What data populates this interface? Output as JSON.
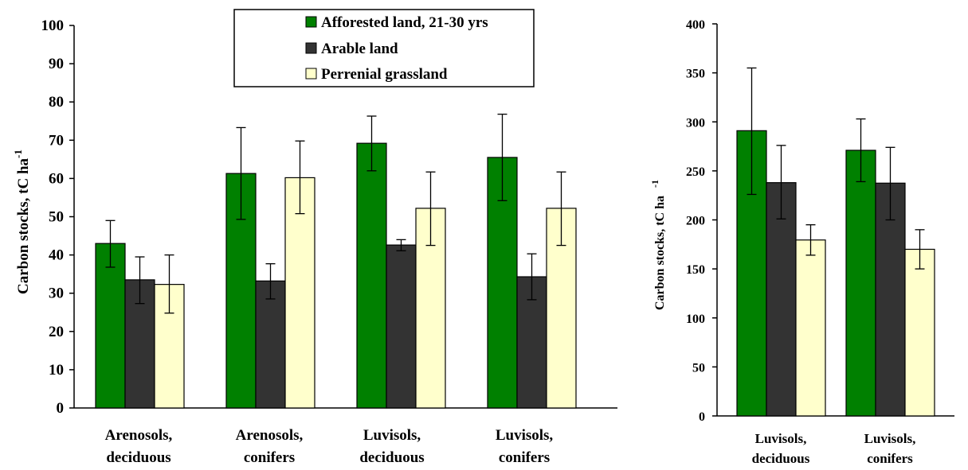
{
  "colors": {
    "afforested": "#008000",
    "arable": "#333333",
    "grassland": "#ffffcc",
    "stroke": "#000000"
  },
  "chart_data": [
    {
      "type": "bar",
      "categories": [
        [
          "Arenosols,",
          "deciduous"
        ],
        [
          "Arenosols,",
          "conifers"
        ],
        [
          "Luvisols,",
          "deciduous"
        ],
        [
          "Luvisols,",
          "conifers"
        ]
      ],
      "ylabel": "Carbon stocks, tC ha",
      "ylabel_sup": "-1",
      "ylim": [
        0,
        100
      ],
      "yticks": [
        0,
        10,
        20,
        30,
        40,
        50,
        60,
        70,
        80,
        90,
        100
      ],
      "grid": false,
      "legend_position": "top-center",
      "series": [
        {
          "name": "Afforested land, 21-30 yrs",
          "values": [
            43,
            61.3,
            69.2,
            65.5
          ],
          "err_low": [
            36.8,
            49.3,
            62,
            54.2
          ],
          "err_high": [
            49,
            73.3,
            76.3,
            76.8
          ]
        },
        {
          "name": "Arable land",
          "values": [
            33.5,
            33.2,
            42.6,
            34.3
          ],
          "err_low": [
            27.3,
            28.5,
            41.1,
            28.3
          ],
          "err_high": [
            39.5,
            37.7,
            44,
            40.3
          ]
        },
        {
          "name": "Perrenial grassland",
          "values": [
            32.3,
            60.2,
            52.2,
            52.2
          ],
          "err_low": [
            24.8,
            50.8,
            42.5,
            42.5
          ],
          "err_high": [
            40,
            69.8,
            61.7,
            61.7
          ]
        }
      ]
    },
    {
      "type": "bar",
      "categories": [
        [
          "Luvisols,",
          "deciduous"
        ],
        [
          "Luvisols,",
          "conifers"
        ]
      ],
      "ylabel": "Carbon stocks, tC ha",
      "ylabel_sup": "-1",
      "ylim": [
        0,
        400
      ],
      "yticks": [
        0,
        50,
        100,
        150,
        200,
        250,
        300,
        350,
        400
      ],
      "grid": false,
      "series": [
        {
          "name": "Afforested land, 21-30 yrs",
          "values": [
            291,
            271
          ],
          "err_low": [
            226,
            239
          ],
          "err_high": [
            355,
            303
          ]
        },
        {
          "name": "Arable land",
          "values": [
            238,
            237.5
          ],
          "err_low": [
            201,
            200
          ],
          "err_high": [
            276,
            274
          ]
        },
        {
          "name": "Perrenial grassland",
          "values": [
            179.5,
            170
          ],
          "err_low": [
            164,
            150
          ],
          "err_high": [
            195,
            190
          ]
        }
      ]
    }
  ]
}
